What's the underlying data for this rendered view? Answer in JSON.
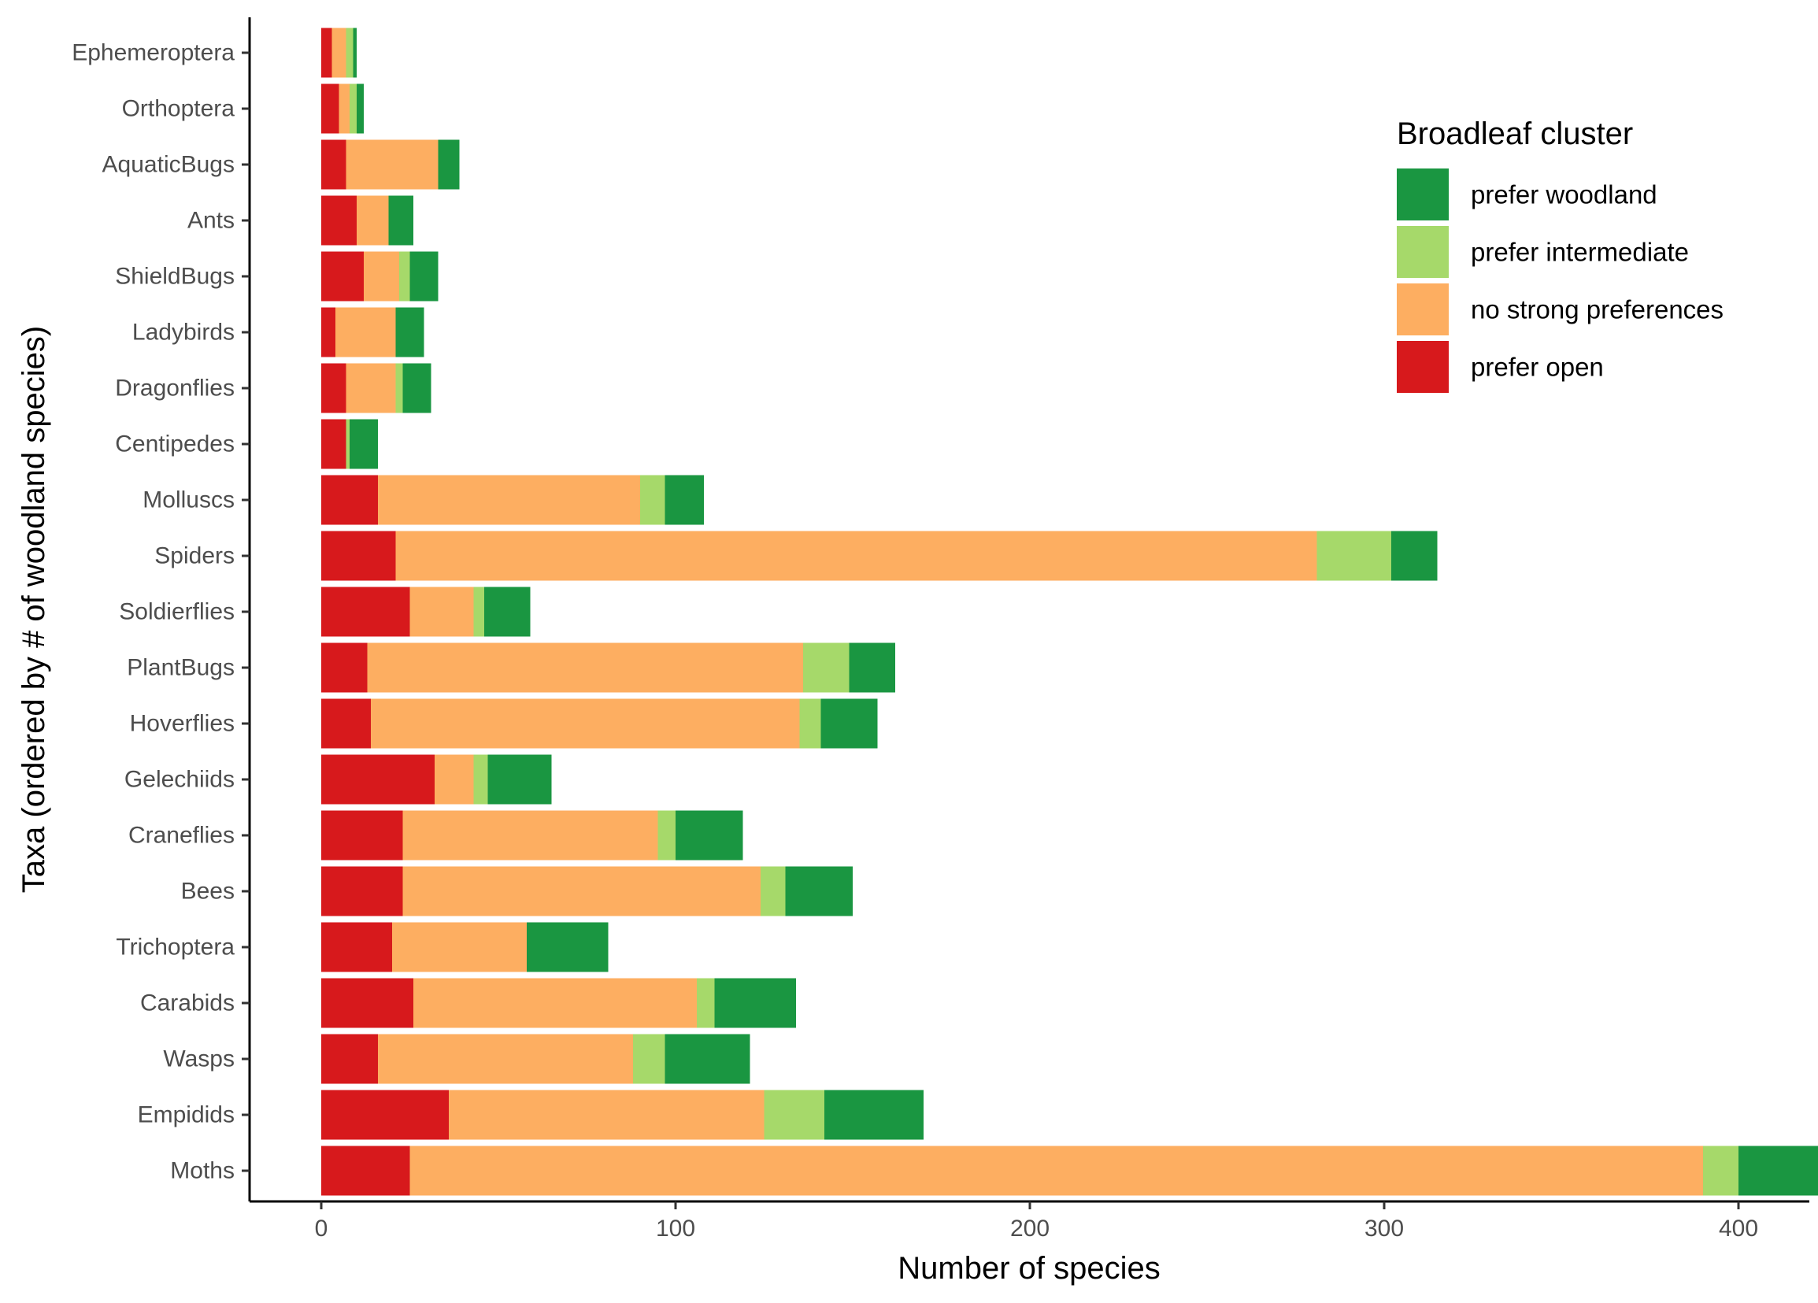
{
  "chart_data": {
    "type": "bar",
    "orientation": "horizontal",
    "stacked": true,
    "title": "",
    "xlabel": "Number of species",
    "ylabel": "Taxa (ordered by # of woodland species)",
    "xlim": [
      -23,
      475
    ],
    "xticks": [
      0,
      100,
      200,
      300,
      400
    ],
    "grid": false,
    "legend_position": "top-right",
    "categories": [
      "Ephemeroptera",
      "Orthoptera",
      "AquaticBugs",
      "Ants",
      "ShieldBugs",
      "Ladybirds",
      "Dragonflies",
      "Centipedes",
      "Molluscs",
      "Spiders",
      "Soldierflies",
      "PlantBugs",
      "Hoverflies",
      "Gelechiids",
      "Craneflies",
      "Bees",
      "Trichoptera",
      "Carabids",
      "Wasps",
      "Empidids",
      "Moths"
    ],
    "series": [
      {
        "name": "prefer open",
        "color": "#d7191c",
        "values": [
          3,
          5,
          7,
          10,
          12,
          4,
          7,
          7,
          16,
          21,
          25,
          13,
          14,
          32,
          23,
          23,
          20,
          26,
          16,
          36,
          25
        ]
      },
      {
        "name": "no strong preferences",
        "color": "#fdae61",
        "values": [
          4,
          3,
          26,
          9,
          10,
          17,
          14,
          0,
          74,
          260,
          18,
          123,
          121,
          11,
          72,
          101,
          38,
          80,
          72,
          89,
          365
        ]
      },
      {
        "name": "prefer intermediate",
        "color": "#a6d96a",
        "values": [
          2,
          2,
          0,
          0,
          3,
          0,
          2,
          1,
          7,
          21,
          3,
          13,
          6,
          4,
          5,
          7,
          0,
          5,
          9,
          17,
          10
        ]
      },
      {
        "name": "prefer woodland",
        "color": "#1a9641",
        "values": [
          1,
          2,
          6,
          7,
          8,
          8,
          8,
          8,
          11,
          13,
          13,
          13,
          16,
          18,
          19,
          19,
          23,
          23,
          24,
          28,
          55
        ]
      }
    ],
    "legend": {
      "title": "Broadleaf cluster",
      "order": [
        "prefer woodland",
        "prefer intermediate",
        "no strong preferences",
        "prefer open"
      ]
    }
  }
}
